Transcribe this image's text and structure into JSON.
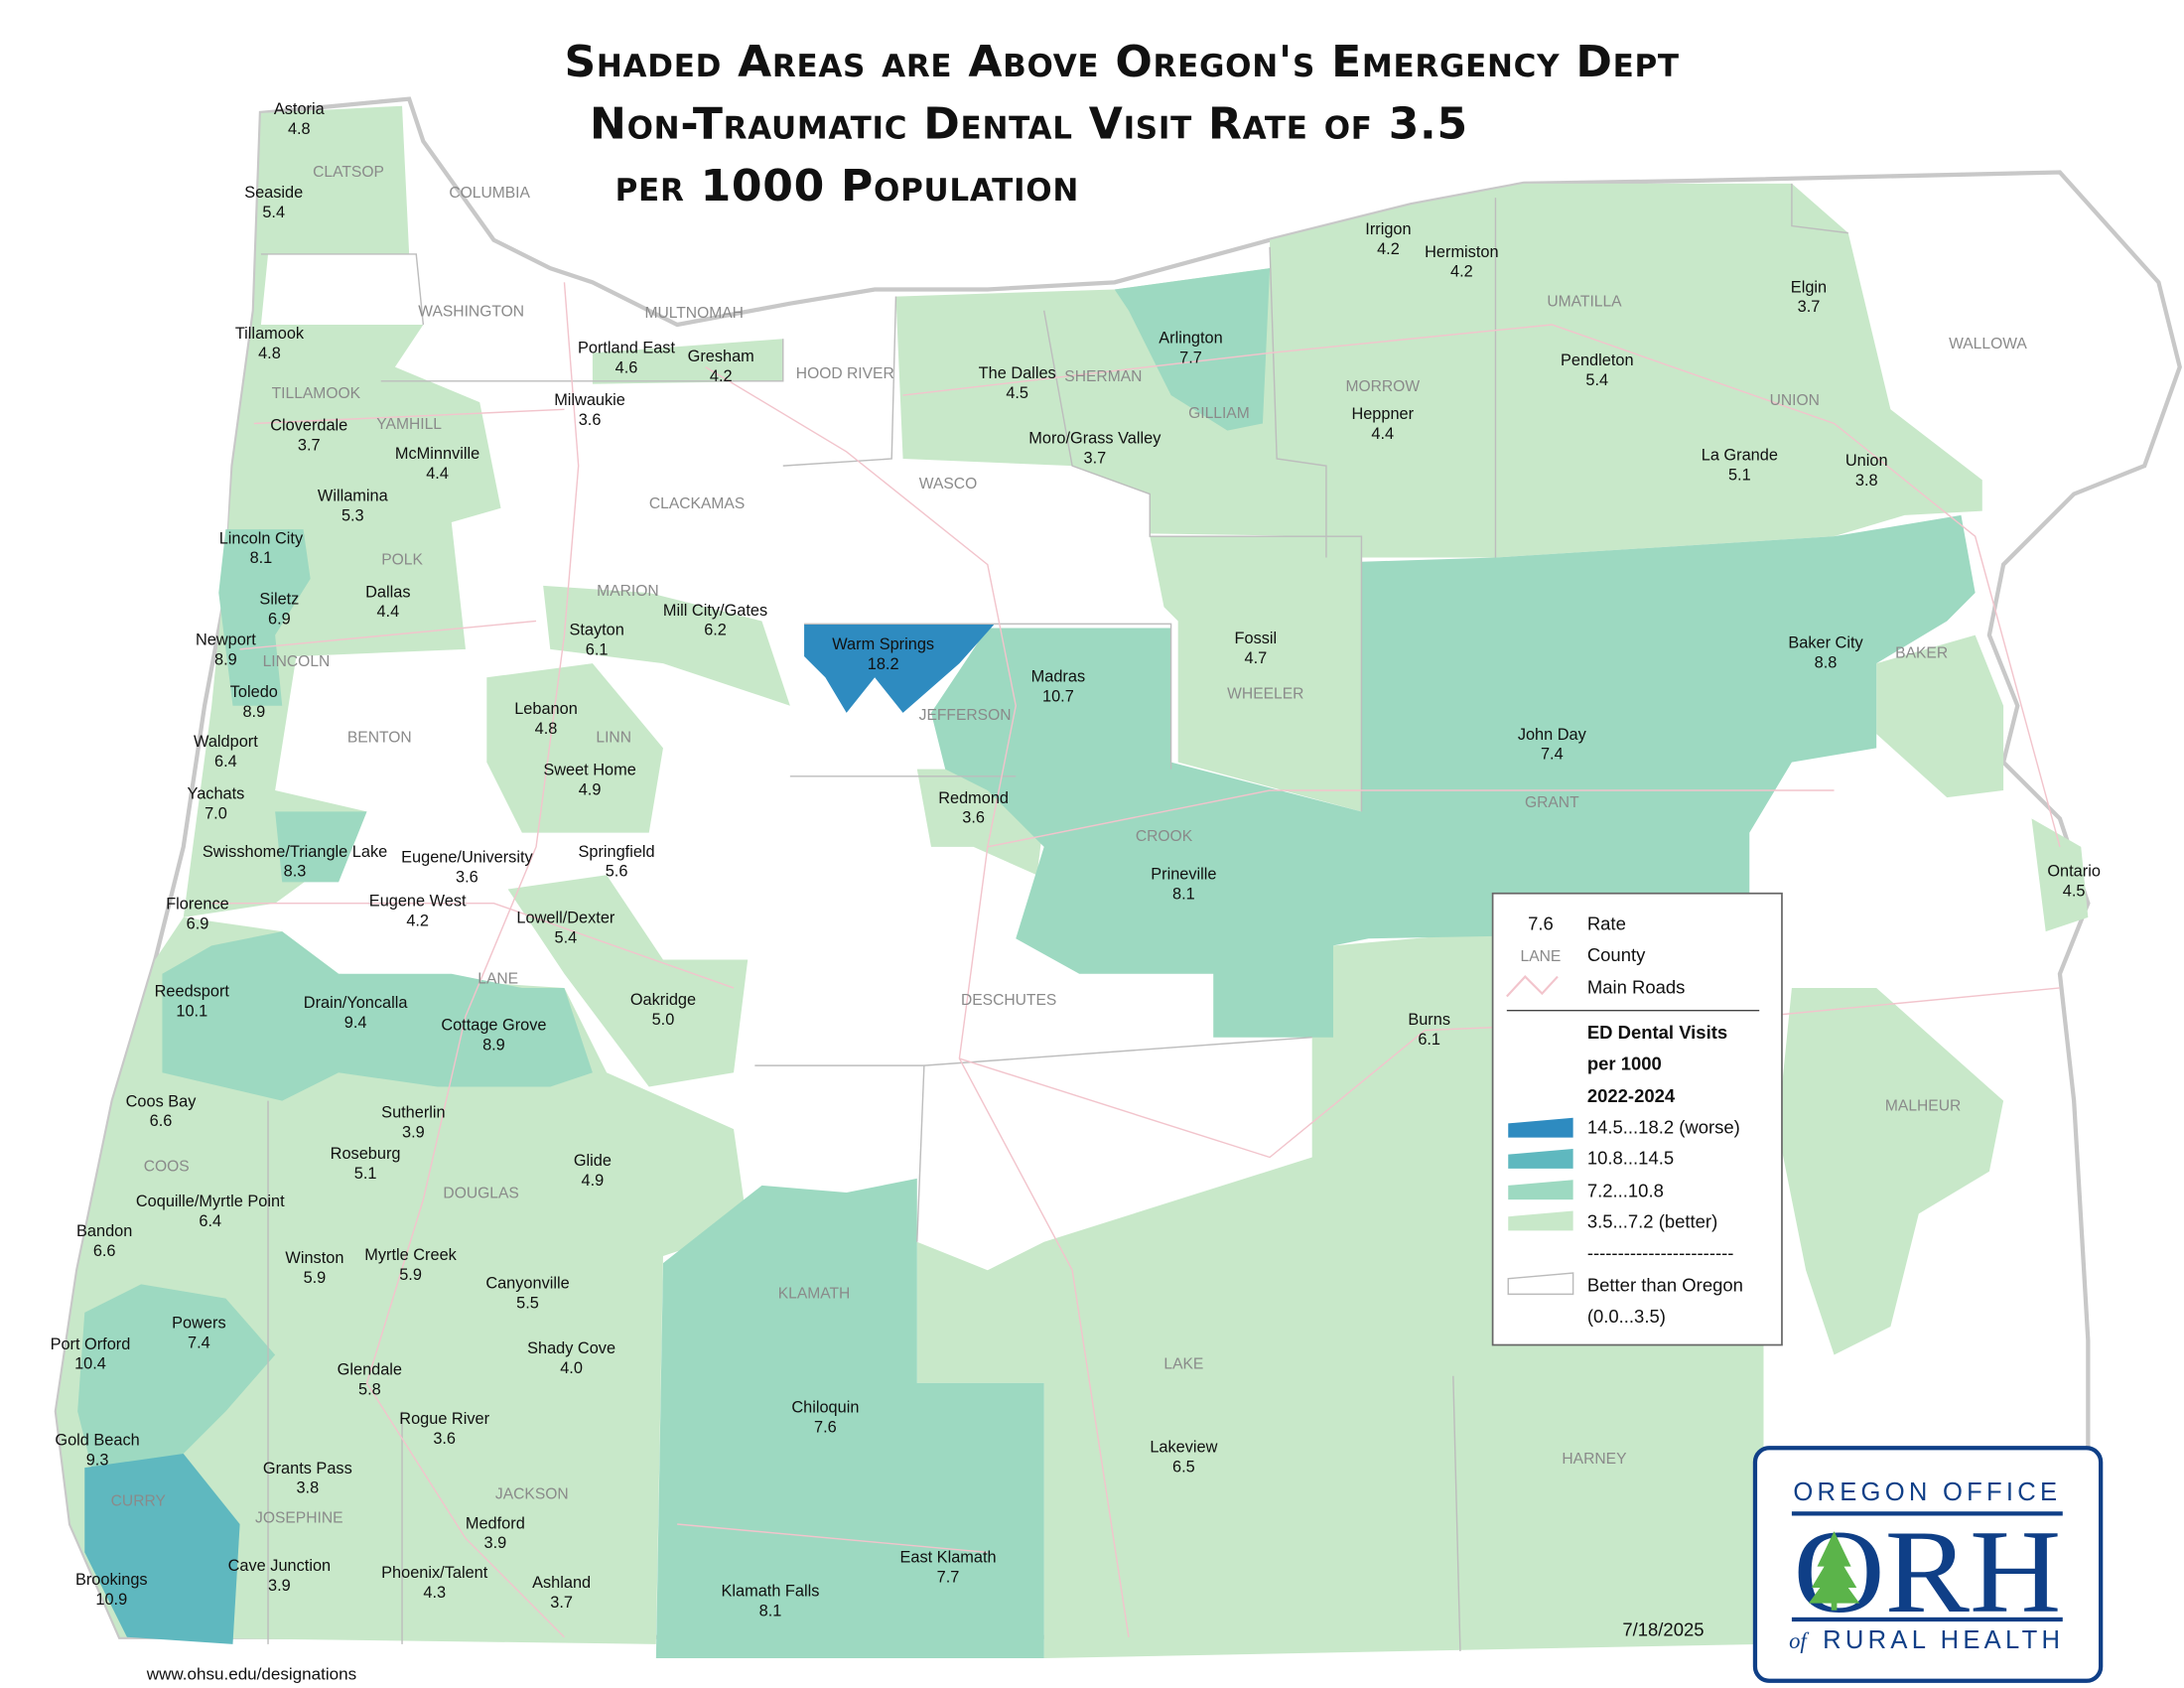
{
  "title": {
    "line1": "Shaded Areas are Above Oregon's Emergency Dept",
    "line2": "Non-Traumatic Dental Visit Rate of 3.5",
    "line3": "per 1000 Population"
  },
  "colors": {
    "worse": "#2e8bc0",
    "high": "#5fb8bf",
    "mid": "#9dd9c1",
    "better": "#c8e8c9",
    "below_state": "#ffffff",
    "roads": "#f2c4cc",
    "logo_blue": "#0f3f87",
    "logo_green": "#5bb44a"
  },
  "places": [
    {
      "name": "Astoria",
      "rate": "4.8"
    },
    {
      "name": "Seaside",
      "rate": "5.4"
    },
    {
      "name": "Tillamook",
      "rate": "4.8"
    },
    {
      "name": "Cloverdale",
      "rate": "3.7"
    },
    {
      "name": "McMinnville",
      "rate": "4.4"
    },
    {
      "name": "Willamina",
      "rate": "5.3"
    },
    {
      "name": "Lincoln City",
      "rate": "8.1"
    },
    {
      "name": "Siletz",
      "rate": "6.9"
    },
    {
      "name": "Newport",
      "rate": "8.9"
    },
    {
      "name": "Dallas",
      "rate": "4.4"
    },
    {
      "name": "Toledo",
      "rate": "8.9"
    },
    {
      "name": "Waldport",
      "rate": "6.4"
    },
    {
      "name": "Yachats",
      "rate": "7.0"
    },
    {
      "name": "Swisshome/Triangle Lake",
      "rate": "8.3"
    },
    {
      "name": "Florence",
      "rate": "6.9"
    },
    {
      "name": "Eugene/University",
      "rate": "3.6"
    },
    {
      "name": "Eugene West",
      "rate": "4.2"
    },
    {
      "name": "Springfield",
      "rate": "5.6"
    },
    {
      "name": "Lowell/Dexter",
      "rate": "5.4"
    },
    {
      "name": "Reedsport",
      "rate": "10.1"
    },
    {
      "name": "Drain/Yoncalla",
      "rate": "9.4"
    },
    {
      "name": "Cottage Grove",
      "rate": "8.9"
    },
    {
      "name": "Oakridge",
      "rate": "5.0"
    },
    {
      "name": "Coos Bay",
      "rate": "6.6"
    },
    {
      "name": "Sutherlin",
      "rate": "3.9"
    },
    {
      "name": "Roseburg",
      "rate": "5.1"
    },
    {
      "name": "Glide",
      "rate": "4.9"
    },
    {
      "name": "Coquille/Myrtle Point",
      "rate": "6.4"
    },
    {
      "name": "Bandon",
      "rate": "6.6"
    },
    {
      "name": "Winston",
      "rate": "5.9"
    },
    {
      "name": "Myrtle Creek",
      "rate": "5.9"
    },
    {
      "name": "Canyonville",
      "rate": "5.5"
    },
    {
      "name": "Powers",
      "rate": "7.4"
    },
    {
      "name": "Port Orford",
      "rate": "10.4"
    },
    {
      "name": "Shady Cove",
      "rate": "4.0"
    },
    {
      "name": "Glendale",
      "rate": "5.8"
    },
    {
      "name": "Rogue River",
      "rate": "3.6"
    },
    {
      "name": "Gold Beach",
      "rate": "9.3"
    },
    {
      "name": "Grants Pass",
      "rate": "3.8"
    },
    {
      "name": "Medford",
      "rate": "3.9"
    },
    {
      "name": "Cave Junction",
      "rate": "3.9"
    },
    {
      "name": "Phoenix/Talent",
      "rate": "4.3"
    },
    {
      "name": "Ashland",
      "rate": "3.7"
    },
    {
      "name": "Brookings",
      "rate": "10.9"
    },
    {
      "name": "Klamath Falls",
      "rate": "8.1"
    },
    {
      "name": "East Klamath",
      "rate": "7.7"
    },
    {
      "name": "Chiloquin",
      "rate": "7.6"
    },
    {
      "name": "Lakeview",
      "rate": "6.5"
    },
    {
      "name": "Portland East",
      "rate": "4.6"
    },
    {
      "name": "Gresham",
      "rate": "4.2"
    },
    {
      "name": "Milwaukie",
      "rate": "3.6"
    },
    {
      "name": "Stayton",
      "rate": "6.1"
    },
    {
      "name": "Mill City/Gates",
      "rate": "6.2"
    },
    {
      "name": "Lebanon",
      "rate": "4.8"
    },
    {
      "name": "Sweet Home",
      "rate": "4.9"
    },
    {
      "name": "Warm Springs",
      "rate": "18.2"
    },
    {
      "name": "Madras",
      "rate": "10.7"
    },
    {
      "name": "Redmond",
      "rate": "3.6"
    },
    {
      "name": "Prineville",
      "rate": "8.1"
    },
    {
      "name": "The Dalles",
      "rate": "4.5"
    },
    {
      "name": "Moro/Grass Valley",
      "rate": "3.7"
    },
    {
      "name": "Arlington",
      "rate": "7.7"
    },
    {
      "name": "Irrigon",
      "rate": "4.2"
    },
    {
      "name": "Hermiston",
      "rate": "4.2"
    },
    {
      "name": "Heppner",
      "rate": "4.4"
    },
    {
      "name": "Pendleton",
      "rate": "5.4"
    },
    {
      "name": "Elgin",
      "rate": "3.7"
    },
    {
      "name": "La Grande",
      "rate": "5.1"
    },
    {
      "name": "Union",
      "rate": "3.8"
    },
    {
      "name": "Fossil",
      "rate": "4.7"
    },
    {
      "name": "Baker City",
      "rate": "8.8"
    },
    {
      "name": "John Day",
      "rate": "7.4"
    },
    {
      "name": "Burns",
      "rate": "6.1"
    },
    {
      "name": "Ontario",
      "rate": "4.5"
    }
  ],
  "counties": [
    "CLATSOP",
    "COLUMBIA",
    "WASHINGTON",
    "MULTNOMAH",
    "HOOD RIVER",
    "SHERMAN",
    "GILLIAM",
    "UMATILLA",
    "WALLOWA",
    "UNION",
    "MORROW",
    "TILLAMOOK",
    "YAMHILL",
    "CLACKAMAS",
    "WASCO",
    "POLK",
    "MARION",
    "LINCOLN",
    "BENTON",
    "LINN",
    "JEFFERSON",
    "WHEELER",
    "BAKER",
    "GRANT",
    "CROOK",
    "LANE",
    "DESCHUTES",
    "MALHEUR",
    "DOUGLAS",
    "COOS",
    "KLAMATH",
    "LAKE",
    "HARNEY",
    "CURRY",
    "JOSEPHINE",
    "JACKSON"
  ],
  "legend": {
    "rate_sample": "7.6",
    "rate_label": "Rate",
    "county_sample": "LANE",
    "county_label": "County",
    "roads_label": "Main Roads",
    "heading1": "ED Dental Visits",
    "heading2": "per 1000",
    "heading3": "2022-2024",
    "classes": [
      {
        "label": "14.5...18.2 (worse)",
        "color": "#2e8bc0"
      },
      {
        "label": "10.8...14.5",
        "color": "#5fb8bf"
      },
      {
        "label": "7.2...10.8",
        "color": "#9dd9c1"
      },
      {
        "label": "3.5...7.2 (better)",
        "color": "#c8e8c9"
      }
    ],
    "separator": "------------------------",
    "below1": "Better than Oregon",
    "below2": "(0.0...3.5)"
  },
  "date": "7/18/2025",
  "url": "www.ohsu.edu/designations",
  "logo": {
    "top": "OREGON OFFICE",
    "mark": "ORH",
    "of": "of",
    "bottom": "RURAL HEALTH"
  }
}
